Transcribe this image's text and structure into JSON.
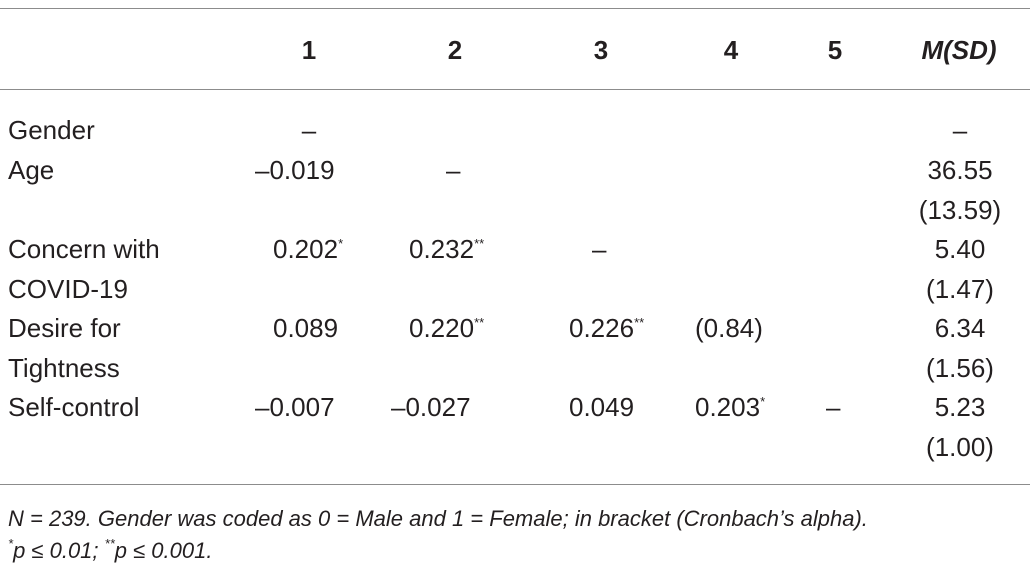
{
  "table": {
    "headers": [
      "",
      "1",
      "2",
      "3",
      "4",
      "5",
      "M(SD)"
    ],
    "rows": [
      {
        "label": [
          "Gender"
        ],
        "c1": "–",
        "c1s": "",
        "c2": "",
        "c2s": "",
        "c3": "",
        "c3s": "",
        "c4": "",
        "c4s": "",
        "c5": "",
        "msd": [
          "–"
        ]
      },
      {
        "label": [
          "Age"
        ],
        "c1": "–0.019",
        "c1s": "",
        "c2": "–",
        "c2s": "",
        "c3": "",
        "c3s": "",
        "c4": "",
        "c4s": "",
        "c5": "",
        "msd": [
          "36.55",
          "(13.59)"
        ]
      },
      {
        "label": [
          "Concern with",
          "COVID-19"
        ],
        "c1": "0.202",
        "c1s": "*",
        "c2": "0.232",
        "c2s": "**",
        "c3": "–",
        "c3s": "",
        "c4": "",
        "c4s": "",
        "c5": "",
        "msd": [
          "5.40",
          "(1.47)"
        ]
      },
      {
        "label": [
          "Desire for",
          "Tightness"
        ],
        "c1": "0.089",
        "c1s": "",
        "c2": "0.220",
        "c2s": "**",
        "c3": "0.226",
        "c3s": "**",
        "c4": "(0.84)",
        "c4s": "",
        "c5": "",
        "msd": [
          "6.34",
          "(1.56)"
        ]
      },
      {
        "label": [
          "Self-control"
        ],
        "c1": "–0.007",
        "c1s": "",
        "c2": "–0.027",
        "c2s": "",
        "c3": "0.049",
        "c3s": "",
        "c4": "0.203",
        "c4s": "*",
        "c5": "–",
        "msd": [
          "5.23",
          "(1.00)"
        ]
      }
    ]
  },
  "note": {
    "line1": "N = 239. Gender was coded as 0 = Male and 1 = Female; in bracket (Cronbach’s alpha).",
    "sig1_mark": "*",
    "sig1_text": "p ≤ 0.01; ",
    "sig2_mark": "**",
    "sig2_text": "p ≤ 0.001."
  }
}
